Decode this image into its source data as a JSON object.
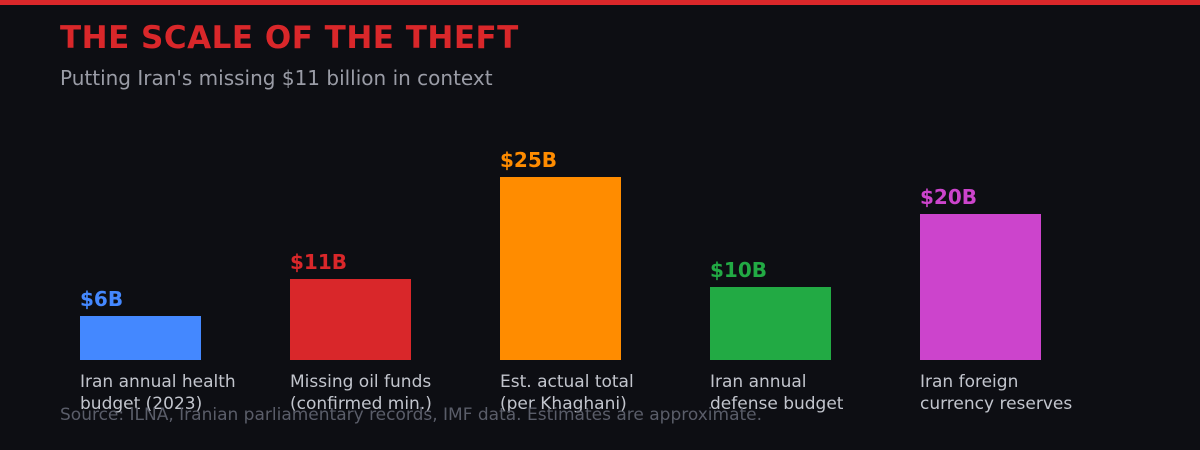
{
  "chart_data": {
    "type": "bar",
    "title": "THE SCALE OF THE THEFT",
    "subtitle": "Putting Iran's missing $11 billion in context",
    "categories": [
      "Iran annual health budget (2023)",
      "Missing oil funds (confirmed min.)",
      "Est. actual total (per Khaghani)",
      "Iran annual defense budget",
      "Iran foreign currency reserves"
    ],
    "values": [
      6,
      11,
      25,
      10,
      20
    ],
    "value_labels": [
      "$6B",
      "$11B",
      "$25B",
      "$10B",
      "$20B"
    ],
    "colors": [
      "#4488ff",
      "#d9272a",
      "#ff8c00",
      "#22aa44",
      "#cc44cc"
    ],
    "source": "Source: ILNA, Iranian parliamentary records, IMF data. Estimates are approximate."
  }
}
